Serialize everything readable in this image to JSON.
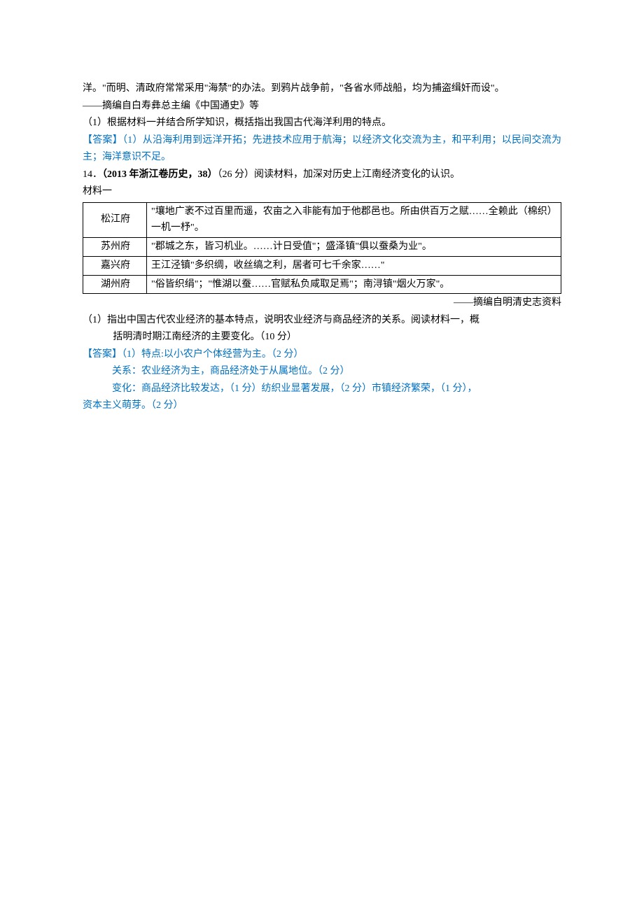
{
  "colors": {
    "text": "#000000",
    "answer": "#0070c0",
    "background": "#ffffff",
    "border": "#000000"
  },
  "typography": {
    "body_font": "SimSun",
    "body_size_pt": 10.5,
    "line_height": 1.75
  },
  "block1": {
    "para1": "洋。\"而明、清政府常常采用\"海禁\"的办法。到鸦片战争前，\"各省水师战船，均为捕盗缉奸而设\"。",
    "source": "——摘编自白寿彝总主编《中国通史》等",
    "question": "（1）根据材料一并结合所学知识，概括指出我国古代海洋利用的特点。",
    "answer": "【答案】（1）从沿海利用到远洋开拓；先进技术应用于航海；以经济文化交流为主，和平利用；以民间交流为主；海洋意识不足。"
  },
  "block2": {
    "num": "14．",
    "ref": "（2013 年浙江卷历史，38）",
    "tail": "（26 分）阅读材料，加深对历史上江南经济变化的认识。",
    "mat_label": "材料一",
    "table": {
      "col_widths": [
        "80px",
        "auto"
      ],
      "rows": [
        {
          "name": "松江府",
          "desc": "\"壤地广袤不过百里而遥，农亩之入非能有加于他郡邑也。所由供百万之赋……全赖此（棉织）一机一杼\"。"
        },
        {
          "name": "苏州府",
          "desc": "\"郡城之东，皆习机业。……计日受值\"；盛泽镇\"俱以蚕桑为业\"。"
        },
        {
          "name": "嘉兴府",
          "desc": "王江泾镇\"多织绸，收丝缟之利，居者可七千余家……\""
        },
        {
          "name": "湖州府",
          "desc": "\"俗皆织绢\"；\"惟湖以蚕……官赋私负咸取足焉\"；南浔镇\"烟火万家\"。"
        }
      ]
    },
    "table_source": "——摘编自明清史志资料",
    "sub_q_line1": "（1）指出中国古代农业经济的基本特点，说明农业经济与商品经济的关系。阅读材料一，概",
    "sub_q_line2": "括明清时期江南经济的主要变化。（10 分）",
    "answer_lines": {
      "l1": "【答案】（1）特点:以小农户个体经营为主。（2 分）",
      "l2": "关系：农业经济为主，商品经济处于从属地位。（2 分）",
      "l3": "变化：商品经济比较发达，（1 分）纺织业显著发展，（2 分）市镇经济繁荣，（1 分），",
      "l4": "资本主义萌芽。（2 分）"
    }
  }
}
